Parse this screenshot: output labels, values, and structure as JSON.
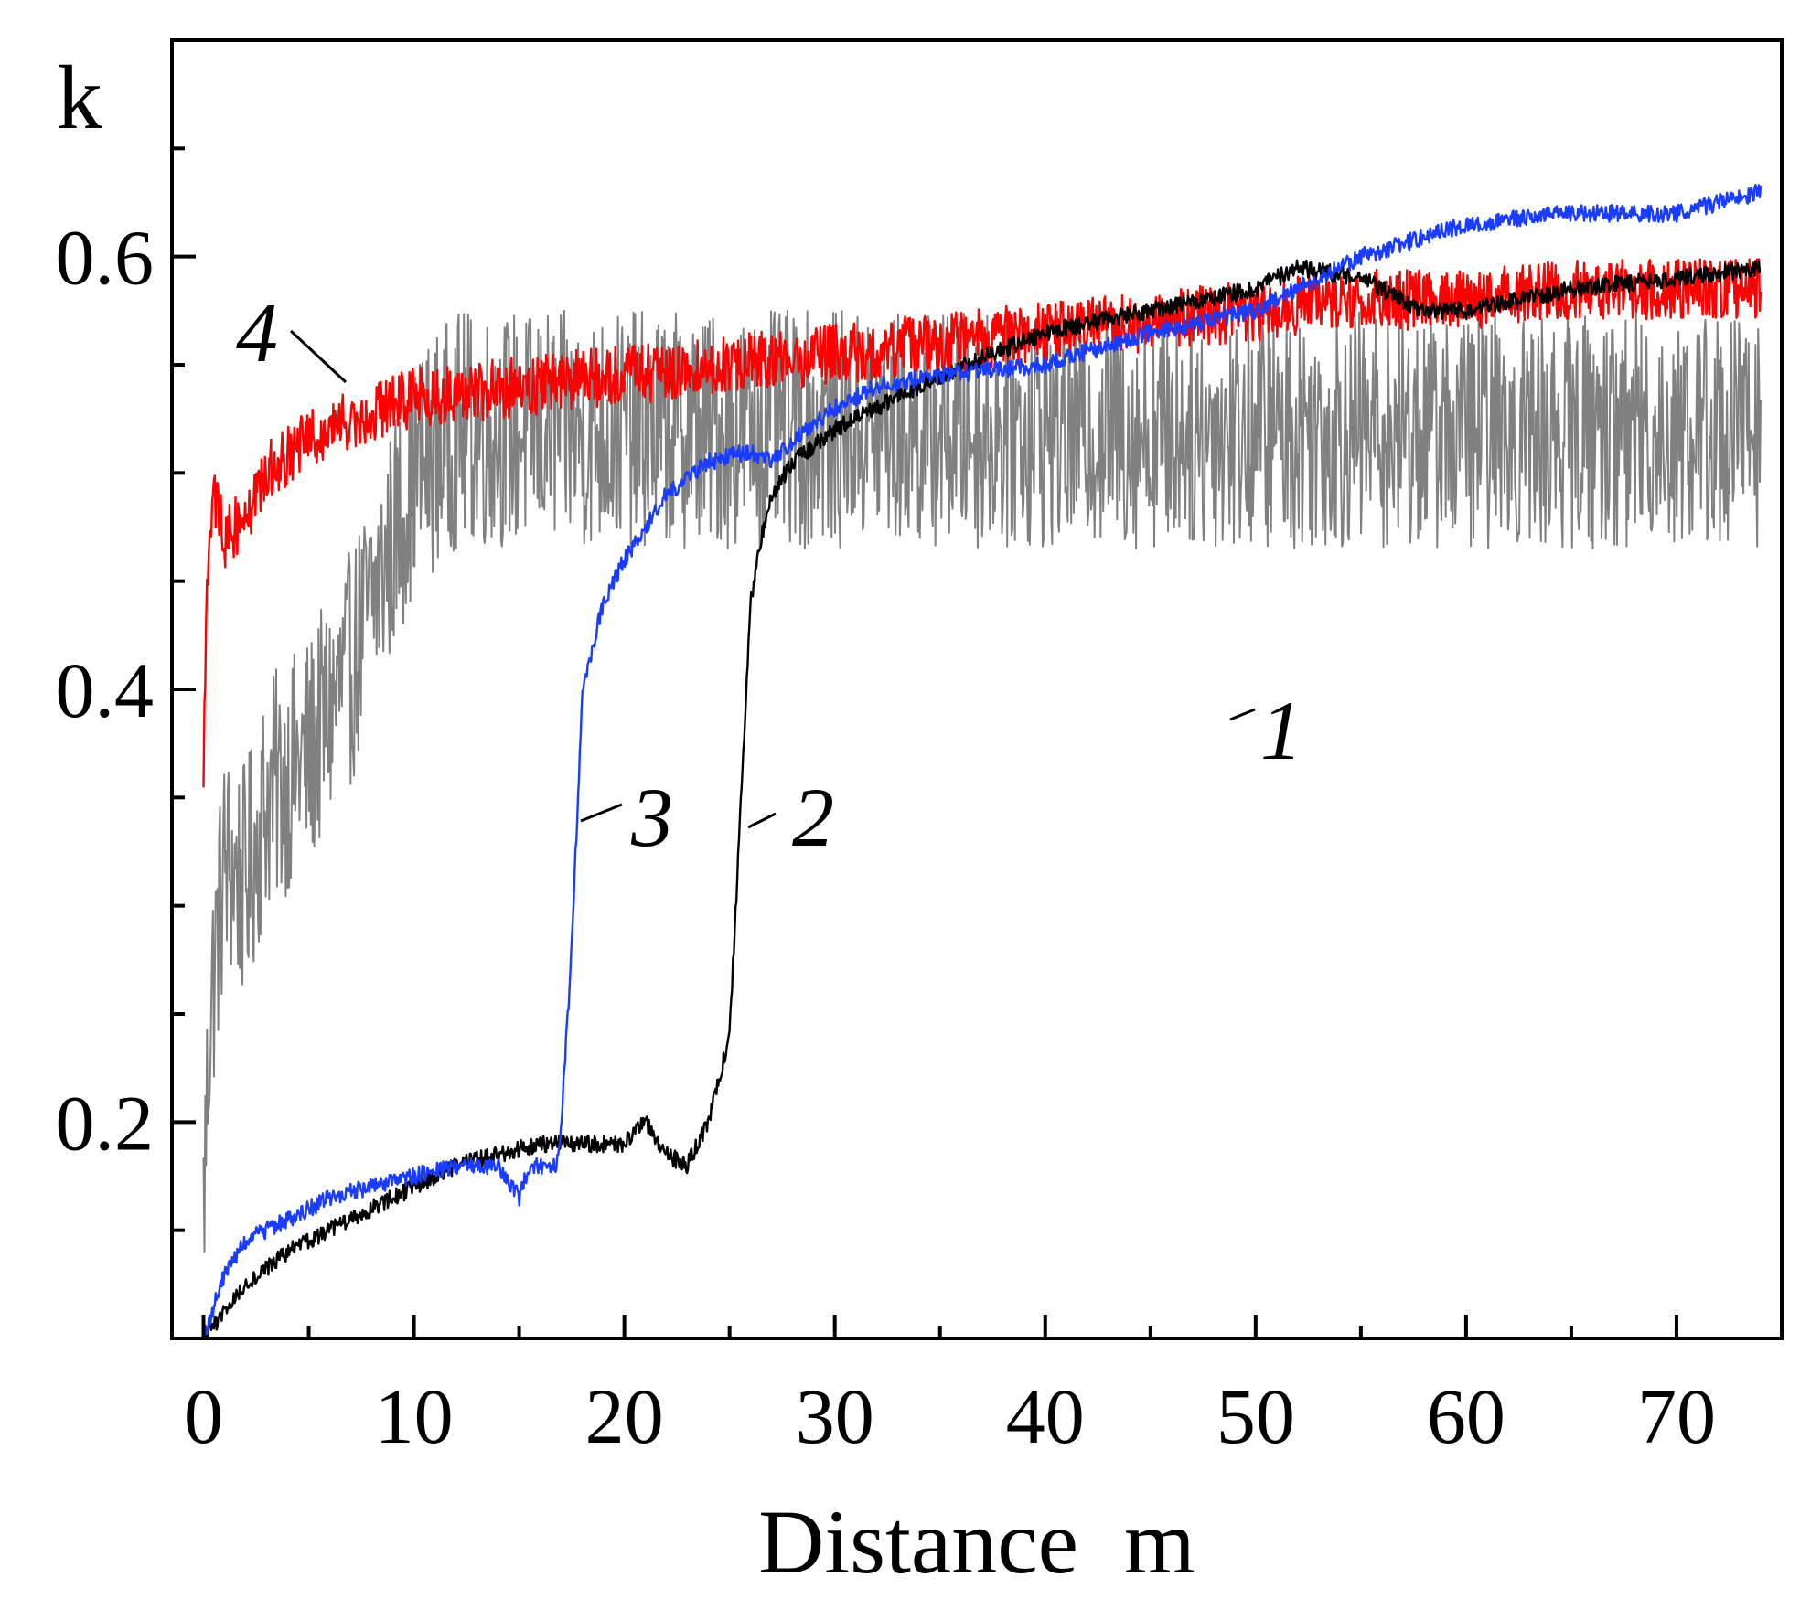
{
  "chart_data": {
    "type": "line",
    "title": "",
    "xlabel": "Distance  m",
    "ylabel": "k",
    "xlim": [
      -1.5,
      75
    ],
    "ylim": [
      0.1,
      0.7
    ],
    "xticks": [
      0,
      10,
      20,
      30,
      40,
      50,
      60,
      70
    ],
    "xtick_labels": [
      "0",
      "10",
      "20",
      "30",
      "40",
      "50",
      "60",
      "70"
    ],
    "yticks": [
      0.2,
      0.4,
      0.6
    ],
    "ytick_labels": [
      "0.2",
      "0.4",
      "0.6"
    ],
    "grid": false,
    "legend": "none (curves labeled inline)",
    "series": [
      {
        "name": "1",
        "label": "1",
        "color": "#808080",
        "noise": 0.055,
        "x": [
          0,
          0.3,
          1,
          2,
          3,
          5,
          7,
          9,
          10,
          12,
          15,
          18,
          20,
          25,
          30,
          35,
          40,
          45,
          50,
          55,
          60,
          65,
          70,
          74
        ],
        "y": [
          0.16,
          0.25,
          0.32,
          0.31,
          0.35,
          0.37,
          0.41,
          0.47,
          0.5,
          0.52,
          0.52,
          0.52,
          0.52,
          0.52,
          0.52,
          0.52,
          0.52,
          0.52,
          0.52,
          0.52,
          0.52,
          0.52,
          0.52,
          0.52
        ]
      },
      {
        "name": "2",
        "label": "2",
        "color": "#000000",
        "noise": 0.004,
        "x": [
          0,
          2,
          4,
          6,
          8,
          10,
          12,
          14,
          16,
          18,
          20,
          21,
          22,
          23,
          24,
          25,
          25.5,
          26,
          26.5,
          27,
          28,
          30,
          32,
          35,
          40,
          45,
          50,
          52,
          55,
          58,
          60,
          65,
          70,
          74
        ],
        "y": [
          0.1,
          0.125,
          0.14,
          0.15,
          0.16,
          0.17,
          0.18,
          0.185,
          0.19,
          0.19,
          0.19,
          0.2,
          0.185,
          0.18,
          0.2,
          0.24,
          0.34,
          0.44,
          0.47,
          0.49,
          0.505,
          0.52,
          0.53,
          0.545,
          0.565,
          0.575,
          0.585,
          0.595,
          0.59,
          0.575,
          0.575,
          0.585,
          0.59,
          0.595
        ]
      },
      {
        "name": "3",
        "label": "3",
        "color": "#1a3cff",
        "noise": 0.004,
        "x": [
          0,
          1,
          2,
          4,
          6,
          8,
          10,
          12,
          14,
          15,
          15.5,
          16,
          16.8,
          17,
          17.5,
          18,
          19,
          20,
          22,
          24,
          26,
          27,
          28,
          30,
          32,
          35,
          40,
          45,
          50,
          55,
          60,
          65,
          70,
          74
        ],
        "y": [
          0.1,
          0.13,
          0.145,
          0.155,
          0.165,
          0.17,
          0.175,
          0.18,
          0.18,
          0.165,
          0.18,
          0.18,
          0.18,
          0.2,
          0.28,
          0.4,
          0.44,
          0.46,
          0.49,
          0.505,
          0.51,
          0.505,
          0.515,
          0.53,
          0.54,
          0.545,
          0.55,
          0.565,
          0.575,
          0.6,
          0.615,
          0.62,
          0.62,
          0.63
        ]
      },
      {
        "name": "4",
        "label": "4",
        "color": "#ff0000",
        "noise": 0.014,
        "x": [
          0,
          0.2,
          0.5,
          1,
          2,
          3,
          5,
          7,
          10,
          15,
          20,
          25,
          30,
          35,
          40,
          45,
          50,
          55,
          60,
          65,
          70,
          74
        ],
        "y": [
          0.36,
          0.46,
          0.49,
          0.47,
          0.48,
          0.5,
          0.515,
          0.525,
          0.535,
          0.54,
          0.545,
          0.55,
          0.555,
          0.56,
          0.565,
          0.57,
          0.575,
          0.58,
          0.58,
          0.585,
          0.585,
          0.585
        ]
      }
    ]
  }
}
